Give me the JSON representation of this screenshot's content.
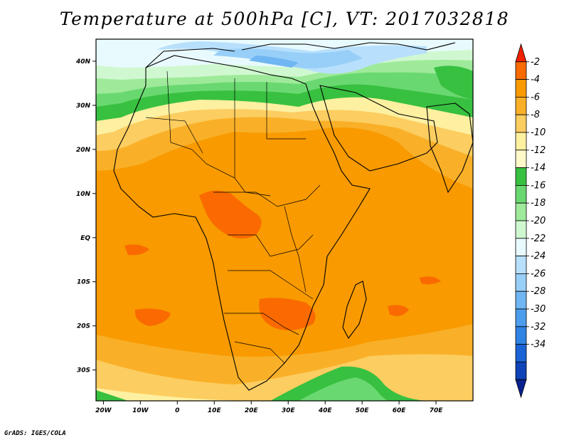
{
  "title": "Temperature at 500hPa [C], VT: 2017032818",
  "credit": "GrADS: IGES/COLA",
  "map": {
    "variable": "Temperature at 500hPa",
    "units": "C",
    "valid_time": "2017032818",
    "lon_range": [
      -22,
      80
    ],
    "lat_range": [
      -37,
      45
    ],
    "lat_ticks": [
      {
        "v": 40,
        "label": "40N"
      },
      {
        "v": 30,
        "label": "30N"
      },
      {
        "v": 20,
        "label": "20N"
      },
      {
        "v": 10,
        "label": "10N"
      },
      {
        "v": 0,
        "label": "EQ"
      },
      {
        "v": -10,
        "label": "10S"
      },
      {
        "v": -20,
        "label": "20S"
      },
      {
        "v": -30,
        "label": "30S"
      }
    ],
    "lon_ticks": [
      {
        "v": -20,
        "label": "20W"
      },
      {
        "v": -10,
        "label": "10W"
      },
      {
        "v": 0,
        "label": "0"
      },
      {
        "v": 10,
        "label": "10E"
      },
      {
        "v": 20,
        "label": "20E"
      },
      {
        "v": 30,
        "label": "30E"
      },
      {
        "v": 40,
        "label": "40E"
      },
      {
        "v": 50,
        "label": "50E"
      },
      {
        "v": 60,
        "label": "60E"
      },
      {
        "v": 70,
        "label": "70E"
      }
    ]
  },
  "colorbar": {
    "labels": [
      "-2",
      "-4",
      "-6",
      "-8",
      "-10",
      "-12",
      "-14",
      "-16",
      "-18",
      "-20",
      "-22",
      "-24",
      "-26",
      "-28",
      "-30",
      "-32",
      "-34"
    ],
    "colors": [
      "#f02000",
      "#fa6a00",
      "#f89a00",
      "#f9b028",
      "#fccd60",
      "#fdf0a0",
      "#fff8c8",
      "#38c040",
      "#6ad870",
      "#9eea9a",
      "#d0f8d0",
      "#e8fafd",
      "#b8e0fc",
      "#98cff8",
      "#70b6f2",
      "#4d9ded",
      "#2e83e4",
      "#1a63d6",
      "#0e44b8",
      "#0a228e"
    ]
  }
}
